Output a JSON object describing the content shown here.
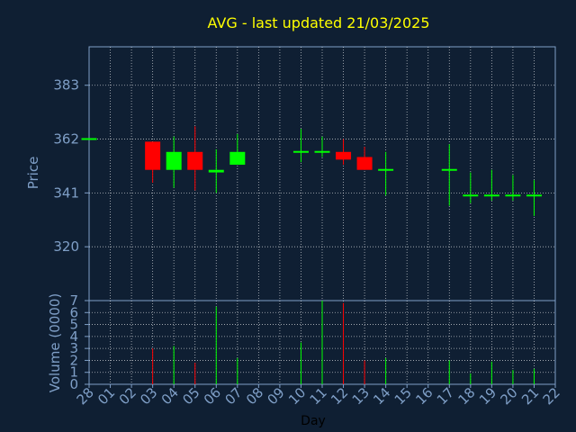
{
  "chart_data": {
    "type": "candlestick",
    "title": "AVG - last updated 21/03/2025",
    "ylabel": "Price",
    "xlabel": "Day",
    "volume_label": "Volume (0000)",
    "categories": [
      "28",
      "01",
      "02",
      "03",
      "04",
      "05",
      "06",
      "07",
      "08",
      "09",
      "10",
      "11",
      "12",
      "13",
      "14",
      "15",
      "16",
      "17",
      "18",
      "19",
      "20",
      "21",
      "22"
    ],
    "ylim": [
      299,
      398
    ],
    "yticks": [
      320,
      341,
      362,
      383
    ],
    "volume_ylim": [
      0,
      7
    ],
    "volume_ticks": [
      0,
      1,
      2,
      3,
      4,
      5,
      6,
      7
    ],
    "grid": true,
    "colors": {
      "up": "#00ff00",
      "down": "#ff0000",
      "title": "#ffff00",
      "axis": "#7f9fc7",
      "background": "#0f1f33",
      "grid": "#ffffff"
    },
    "candles": [
      {
        "x": "28",
        "open": 362,
        "high": 362,
        "low": 362,
        "close": 362,
        "volume": 0
      },
      {
        "x": "03",
        "open": 361,
        "high": 361,
        "low": 345,
        "close": 350,
        "volume": 3
      },
      {
        "x": "04",
        "open": 350,
        "high": 363,
        "low": 343,
        "close": 357,
        "volume": 3.2
      },
      {
        "x": "05",
        "open": 357,
        "high": 367,
        "low": 342,
        "close": 350,
        "volume": 1.8
      },
      {
        "x": "06",
        "open": 349,
        "high": 358,
        "low": 341,
        "close": 350,
        "volume": 6.5
      },
      {
        "x": "07",
        "open": 352,
        "high": 364,
        "low": 352,
        "close": 357,
        "volume": 2.2
      },
      {
        "x": "10",
        "open": 357,
        "high": 366,
        "low": 353,
        "close": 357,
        "volume": 3.5
      },
      {
        "x": "11",
        "open": 357,
        "high": 363,
        "low": 355,
        "close": 357,
        "volume": 7
      },
      {
        "x": "12",
        "open": 357,
        "high": 362,
        "low": 352,
        "close": 354,
        "volume": 6.8
      },
      {
        "x": "13",
        "open": 355,
        "high": 359,
        "low": 350,
        "close": 350,
        "volume": 2
      },
      {
        "x": "14",
        "open": 350,
        "high": 357,
        "low": 340,
        "close": 350,
        "volume": 2.2
      },
      {
        "x": "17",
        "open": 350,
        "high": 360,
        "low": 336,
        "close": 350,
        "volume": 2
      },
      {
        "x": "18",
        "open": 340,
        "high": 349,
        "low": 337,
        "close": 340,
        "volume": 0.9
      },
      {
        "x": "19",
        "open": 340,
        "high": 350,
        "low": 338,
        "close": 340,
        "volume": 1.9
      },
      {
        "x": "20",
        "open": 340,
        "high": 348,
        "low": 338,
        "close": 340,
        "volume": 1.2
      },
      {
        "x": "21",
        "open": 340,
        "high": 346,
        "low": 332,
        "close": 340,
        "volume": 1.3
      }
    ]
  }
}
